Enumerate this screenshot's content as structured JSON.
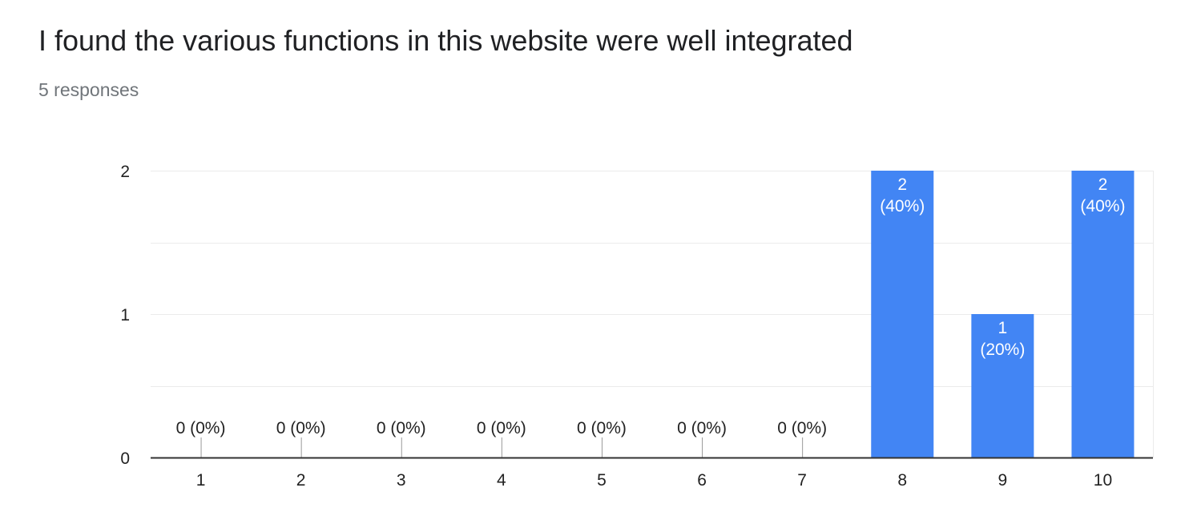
{
  "question": {
    "title": "I found the various functions in this website were well integrated",
    "response_count": "5 responses"
  },
  "colors": {
    "bar": "#4285f4",
    "axis": "#333333",
    "gridline": "#ebebeb",
    "tick_text": "#222222",
    "bar_label_inside": "#ffffff"
  },
  "chart_data": {
    "type": "bar",
    "categories": [
      "1",
      "2",
      "3",
      "4",
      "5",
      "6",
      "7",
      "8",
      "9",
      "10"
    ],
    "values": [
      0,
      0,
      0,
      0,
      0,
      0,
      0,
      2,
      1,
      2
    ],
    "data_labels": [
      [
        "0 (0%)"
      ],
      [
        "0 (0%)"
      ],
      [
        "0 (0%)"
      ],
      [
        "0 (0%)"
      ],
      [
        "0 (0%)"
      ],
      [
        "0 (0%)"
      ],
      [
        "0 (0%)"
      ],
      [
        "2",
        "(40%)"
      ],
      [
        "1",
        "(20%)"
      ],
      [
        "2",
        "(40%)"
      ]
    ],
    "ylim": [
      0,
      2
    ],
    "yticks": [
      0,
      1,
      2
    ],
    "ytick_labels": [
      "0",
      "1",
      "2"
    ],
    "xlabel": "",
    "ylabel": "",
    "grid": true,
    "legend": "none"
  }
}
